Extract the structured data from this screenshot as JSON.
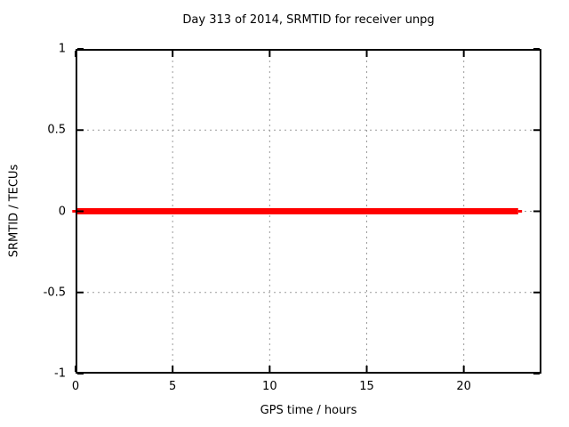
{
  "chart_data": {
    "type": "line",
    "title": "Day 313 of 2014, SRMTID for receiver unpg",
    "xlabel": "GPS time / hours",
    "ylabel": "SRMTID / TECUs",
    "xlim": [
      0,
      24
    ],
    "ylim": [
      -1,
      1
    ],
    "xticks": [
      {
        "v": 0,
        "label": "0"
      },
      {
        "v": 5,
        "label": "5"
      },
      {
        "v": 10,
        "label": "10"
      },
      {
        "v": 15,
        "label": "15"
      },
      {
        "v": 20,
        "label": "20"
      }
    ],
    "yticks": [
      {
        "v": 1,
        "label": "1"
      },
      {
        "v": 0.5,
        "label": "0.5"
      },
      {
        "v": 0,
        "label": "0"
      },
      {
        "v": -0.5,
        "label": "-0.5"
      },
      {
        "v": -1,
        "label": "-1"
      }
    ],
    "grid": {
      "show": true,
      "color": "#9b9b9b",
      "dash": "2,4"
    },
    "border_color": "#000000",
    "tick_color": "#000000",
    "text_color": "#000000",
    "background": "#ffffff",
    "legend": "none",
    "series": [
      {
        "name": "SRMTID",
        "color": "#ff0000",
        "linewidth": 7,
        "x": [
          0,
          22.8
        ],
        "y": [
          0,
          0
        ]
      },
      {
        "name": "SRMTID-cap-left",
        "color": "#ff0000",
        "linewidth": 3,
        "x": [
          -0.17,
          0
        ],
        "y": [
          0,
          0
        ]
      },
      {
        "name": "SRMTID-cap-right",
        "color": "#ff0000",
        "linewidth": 3,
        "x": [
          22.8,
          23.0
        ],
        "y": [
          0,
          0
        ]
      }
    ]
  }
}
